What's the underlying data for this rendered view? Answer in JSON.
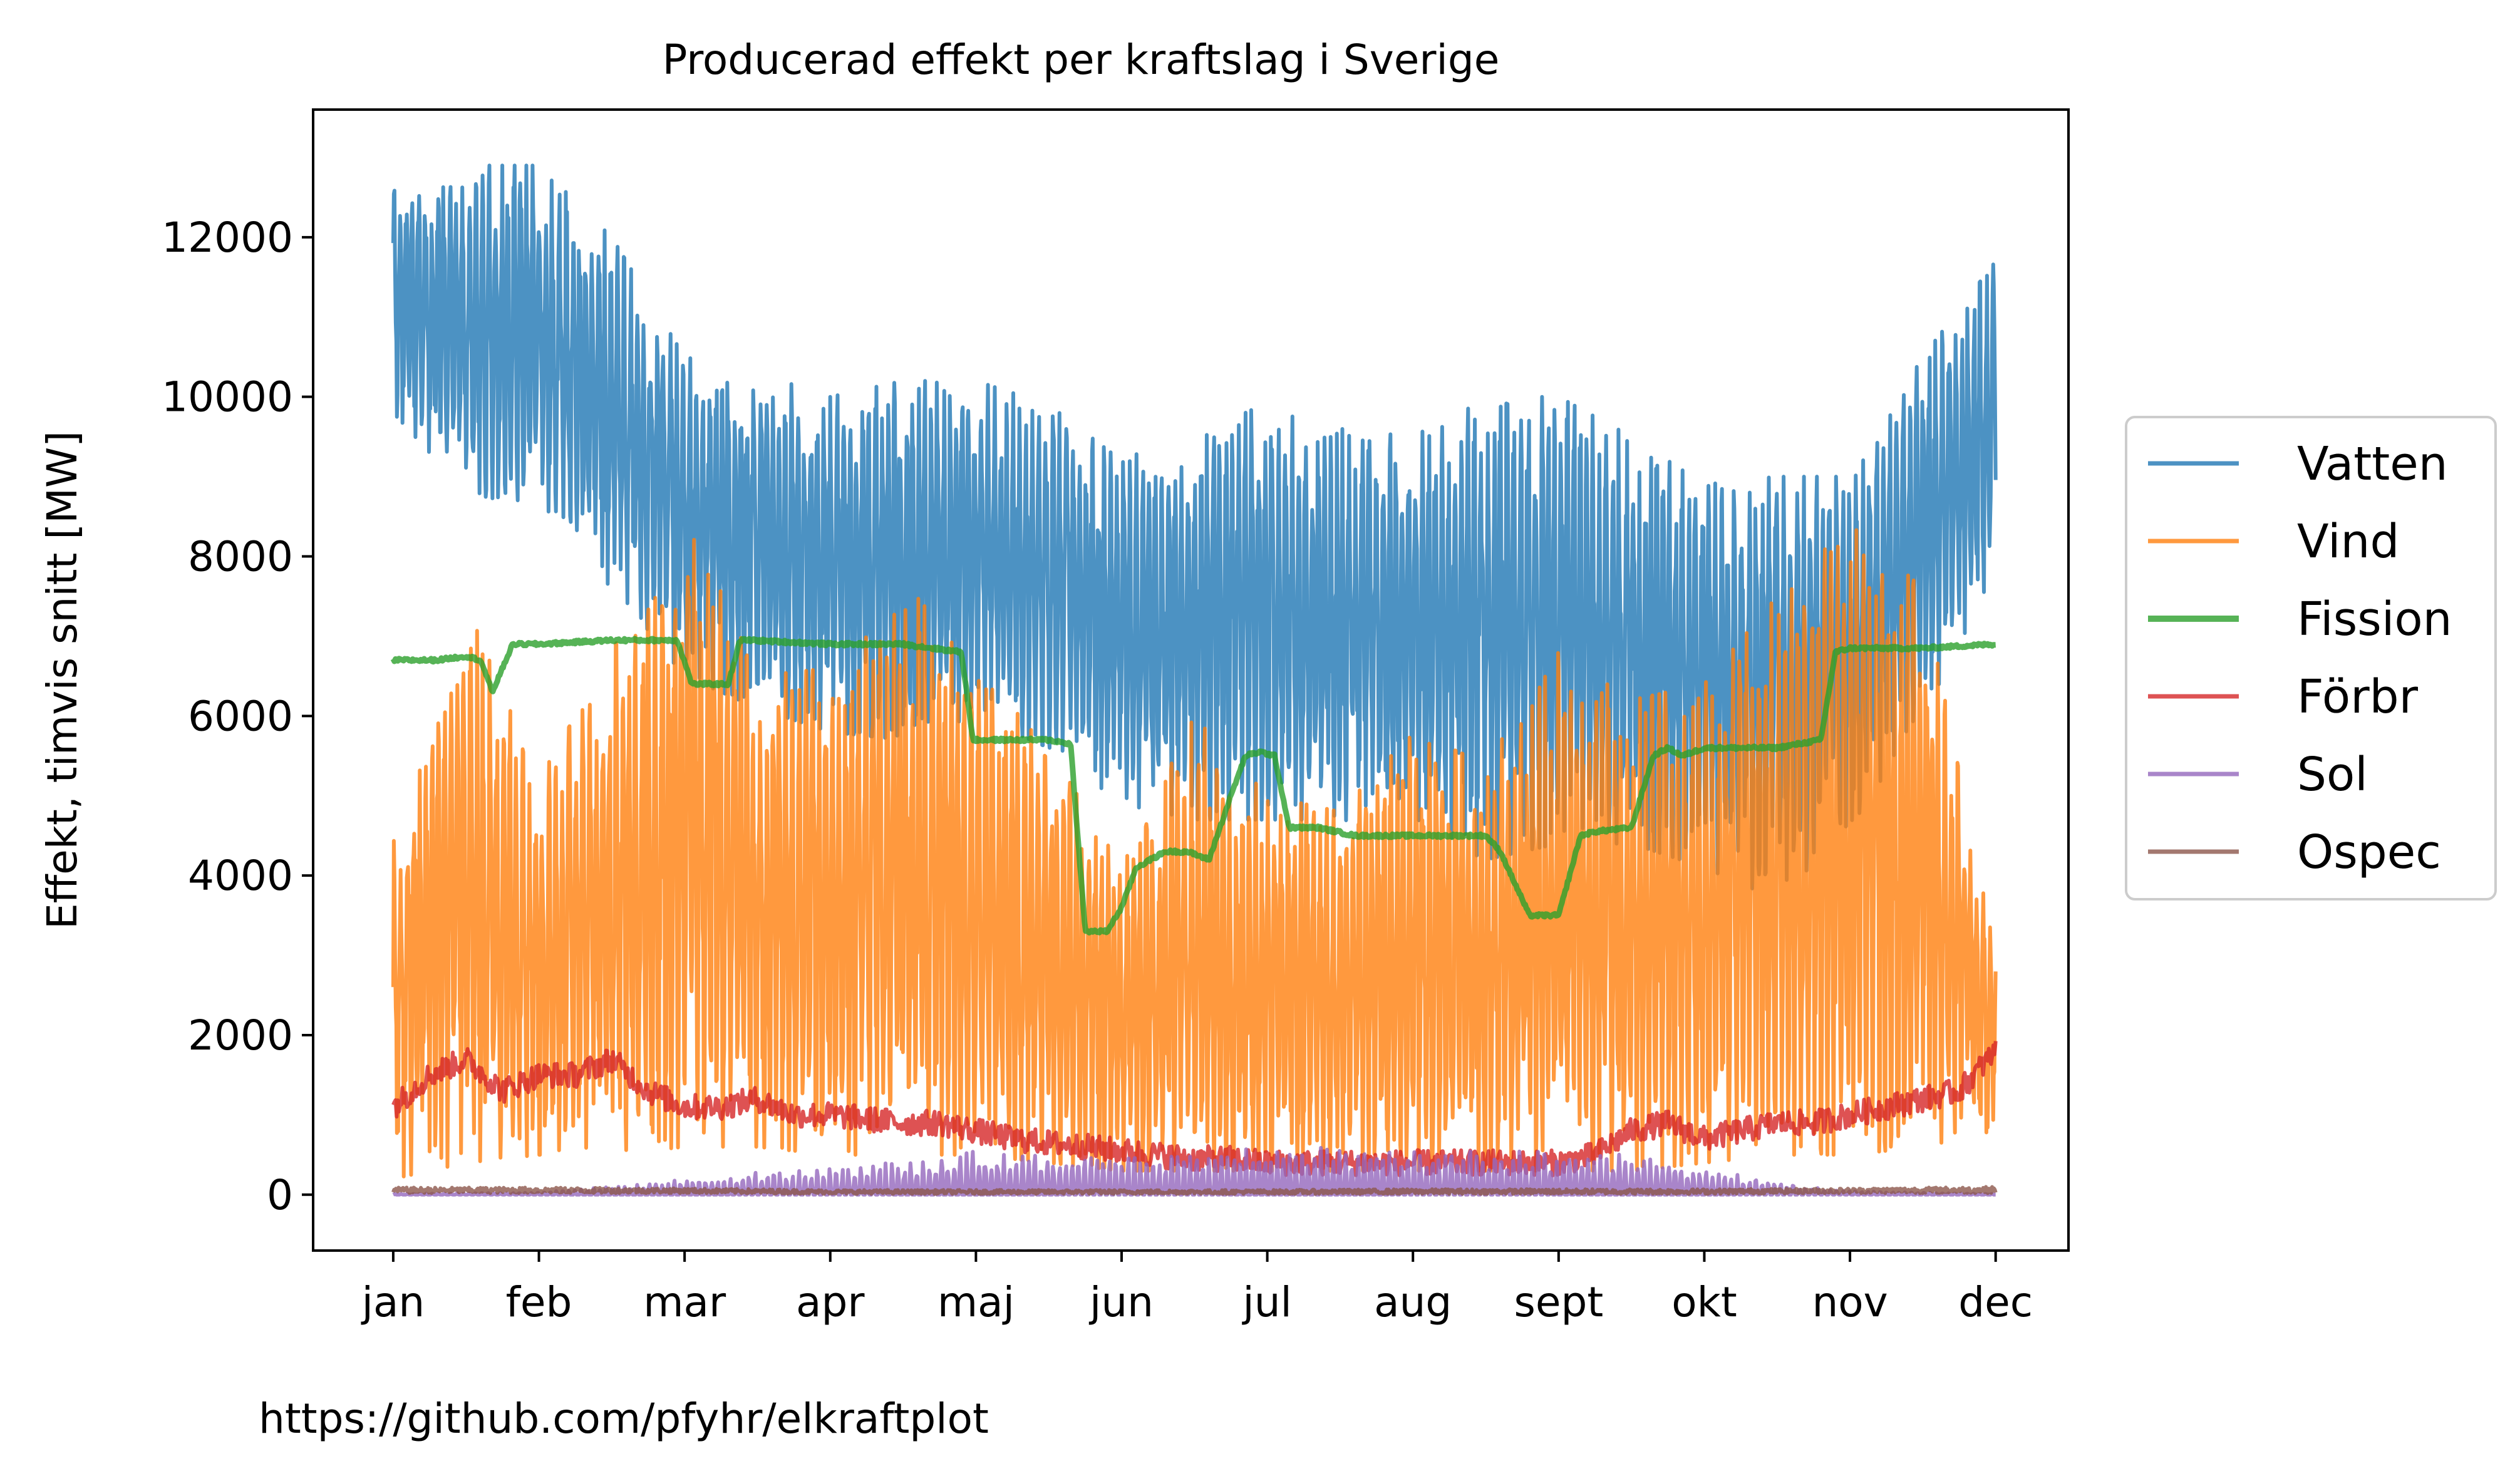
{
  "footer_url": "https://github.com/pfyhr/elkraftplot",
  "chart_data": {
    "type": "line",
    "title": "Producerad effekt per kraftslag i Sverige",
    "xlabel": "",
    "ylabel": "Effekt, timvis snitt [MW]",
    "ylim": [
      -700,
      13600
    ],
    "yticks": [
      0,
      2000,
      4000,
      6000,
      8000,
      10000,
      12000
    ],
    "xlim": [
      -0.55,
      11.5
    ],
    "months": [
      "jan",
      "feb",
      "mar",
      "apr",
      "maj",
      "jun",
      "jul",
      "aug",
      "sept",
      "okt",
      "nov",
      "dec"
    ],
    "grid": false,
    "legend_position": "right",
    "series": [
      {
        "name": "Vatten",
        "color": "#1f77b4",
        "x": [
          0,
          0.5,
          1,
          1.5,
          2,
          2.5,
          3,
          3.5,
          4,
          4.5,
          5,
          5.5,
          6,
          6.5,
          7,
          7.5,
          8,
          8.5,
          9,
          9.5,
          10,
          10.5,
          11
        ],
        "low": [
          9800,
          8800,
          8600,
          7600,
          6500,
          6100,
          5800,
          5700,
          6000,
          5600,
          4900,
          4700,
          4700,
          4700,
          4600,
          4200,
          4400,
          4400,
          4100,
          3700,
          4600,
          6000,
          7800
        ],
        "high": [
          12600,
          12900,
          12900,
          12000,
          10500,
          10300,
          10000,
          10200,
          10200,
          9900,
          9200,
          9600,
          9900,
          9600,
          9500,
          10000,
          10000,
          9500,
          8900,
          9000,
          9000,
          10500,
          11700
        ]
      },
      {
        "name": "Vind",
        "color": "#ff7f0e",
        "x": [
          0,
          0.5,
          1,
          1.5,
          2,
          2.5,
          3,
          3.5,
          4,
          4.5,
          5,
          5.5,
          6,
          6.5,
          7,
          7.5,
          8,
          8.5,
          9,
          9.5,
          10,
          10.5,
          11
        ],
        "low": [
          200,
          400,
          500,
          500,
          600,
          600,
          500,
          500,
          500,
          400,
          300,
          300,
          300,
          300,
          300,
          300,
          300,
          300,
          400,
          500,
          500,
          600,
          800
        ],
        "high": [
          4600,
          7400,
          5200,
          6800,
          8600,
          6500,
          6600,
          7700,
          6600,
          5600,
          4100,
          6000,
          5000,
          4800,
          5800,
          5400,
          6800,
          6200,
          6400,
          7500,
          8400,
          7600,
          3000
        ]
      },
      {
        "name": "Fission",
        "color": "#2ca02c",
        "x": [
          0,
          0.3,
          0.5,
          0.6,
          0.68,
          0.82,
          1.0,
          1.5,
          1.95,
          2.05,
          2.3,
          2.38,
          2.45,
          3.0,
          3.5,
          3.9,
          3.98,
          4.1,
          4.5,
          4.65,
          4.75,
          4.9,
          5.0,
          5.1,
          5.3,
          5.45,
          5.6,
          5.75,
          5.85,
          5.95,
          6.05,
          6.15,
          6.35,
          6.6,
          6.8,
          7.0,
          7.5,
          7.6,
          7.8,
          8.0,
          8.15,
          8.25,
          8.5,
          8.65,
          8.75,
          8.85,
          9.0,
          9.3,
          9.5,
          9.8,
          9.9,
          10.0,
          10.5,
          11.0
        ],
        "y": [
          6700,
          6700,
          6750,
          6700,
          6300,
          6900,
          6900,
          6950,
          6950,
          6400,
          6400,
          6950,
          6950,
          6900,
          6900,
          6800,
          5700,
          5700,
          5700,
          5650,
          3300,
          3300,
          3600,
          4100,
          4300,
          4300,
          4200,
          5000,
          5500,
          5550,
          5500,
          4600,
          4600,
          4500,
          4500,
          4500,
          4500,
          4300,
          3500,
          3500,
          4500,
          4550,
          4600,
          5500,
          5600,
          5500,
          5600,
          5600,
          5600,
          5700,
          6800,
          6850,
          6850,
          6900
        ]
      },
      {
        "name": "Förbr",
        "color": "#d62728",
        "x": [
          0,
          0.25,
          0.5,
          0.75,
          1.0,
          1.25,
          1.5,
          1.75,
          2.0,
          2.25,
          2.5,
          2.75,
          3.0,
          3.25,
          3.5,
          3.75,
          4.0,
          4.25,
          4.5,
          4.75,
          5.0,
          5.25,
          5.5,
          5.75,
          6.0,
          6.25,
          6.5,
          6.75,
          7.0,
          7.25,
          7.5,
          7.75,
          8.0,
          8.25,
          8.5,
          8.75,
          9.0,
          9.25,
          9.5,
          9.75,
          10.0,
          10.25,
          10.5,
          10.75,
          11.0
        ],
        "y": [
          1100,
          1500,
          1700,
          1300,
          1500,
          1500,
          1700,
          1300,
          1100,
          1100,
          1200,
          1000,
          1000,
          950,
          900,
          900,
          800,
          700,
          650,
          600,
          550,
          500,
          450,
          450,
          400,
          400,
          400,
          400,
          400,
          400,
          400,
          400,
          400,
          500,
          800,
          900,
          700,
          800,
          900,
          900,
          1000,
          1100,
          1200,
          1300,
          1800
        ]
      },
      {
        "name": "Sol",
        "color": "#9467bd",
        "x": [
          0,
          1,
          1.8,
          2.5,
          3.0,
          3.5,
          4.0,
          4.5,
          5.0,
          5.5,
          6.0,
          6.5,
          7.0,
          7.5,
          8.0,
          8.5,
          9.0,
          9.5,
          10.0,
          11.0
        ],
        "low": [
          0,
          0,
          0,
          0,
          0,
          0,
          0,
          0,
          0,
          0,
          0,
          0,
          0,
          0,
          0,
          0,
          0,
          0,
          0,
          0
        ],
        "high": [
          10,
          30,
          150,
          300,
          350,
          450,
          550,
          500,
          500,
          550,
          600,
          600,
          600,
          600,
          550,
          500,
          350,
          150,
          50,
          10
        ]
      },
      {
        "name": "Ospec",
        "color": "#8c564b",
        "x": [
          0,
          1,
          2,
          3,
          4,
          5,
          6,
          7,
          8,
          9,
          10,
          11
        ],
        "low": [
          20,
          20,
          20,
          10,
          10,
          10,
          10,
          10,
          10,
          10,
          20,
          20
        ],
        "high": [
          90,
          90,
          80,
          60,
          60,
          60,
          60,
          70,
          70,
          70,
          80,
          100
        ]
      }
    ]
  }
}
